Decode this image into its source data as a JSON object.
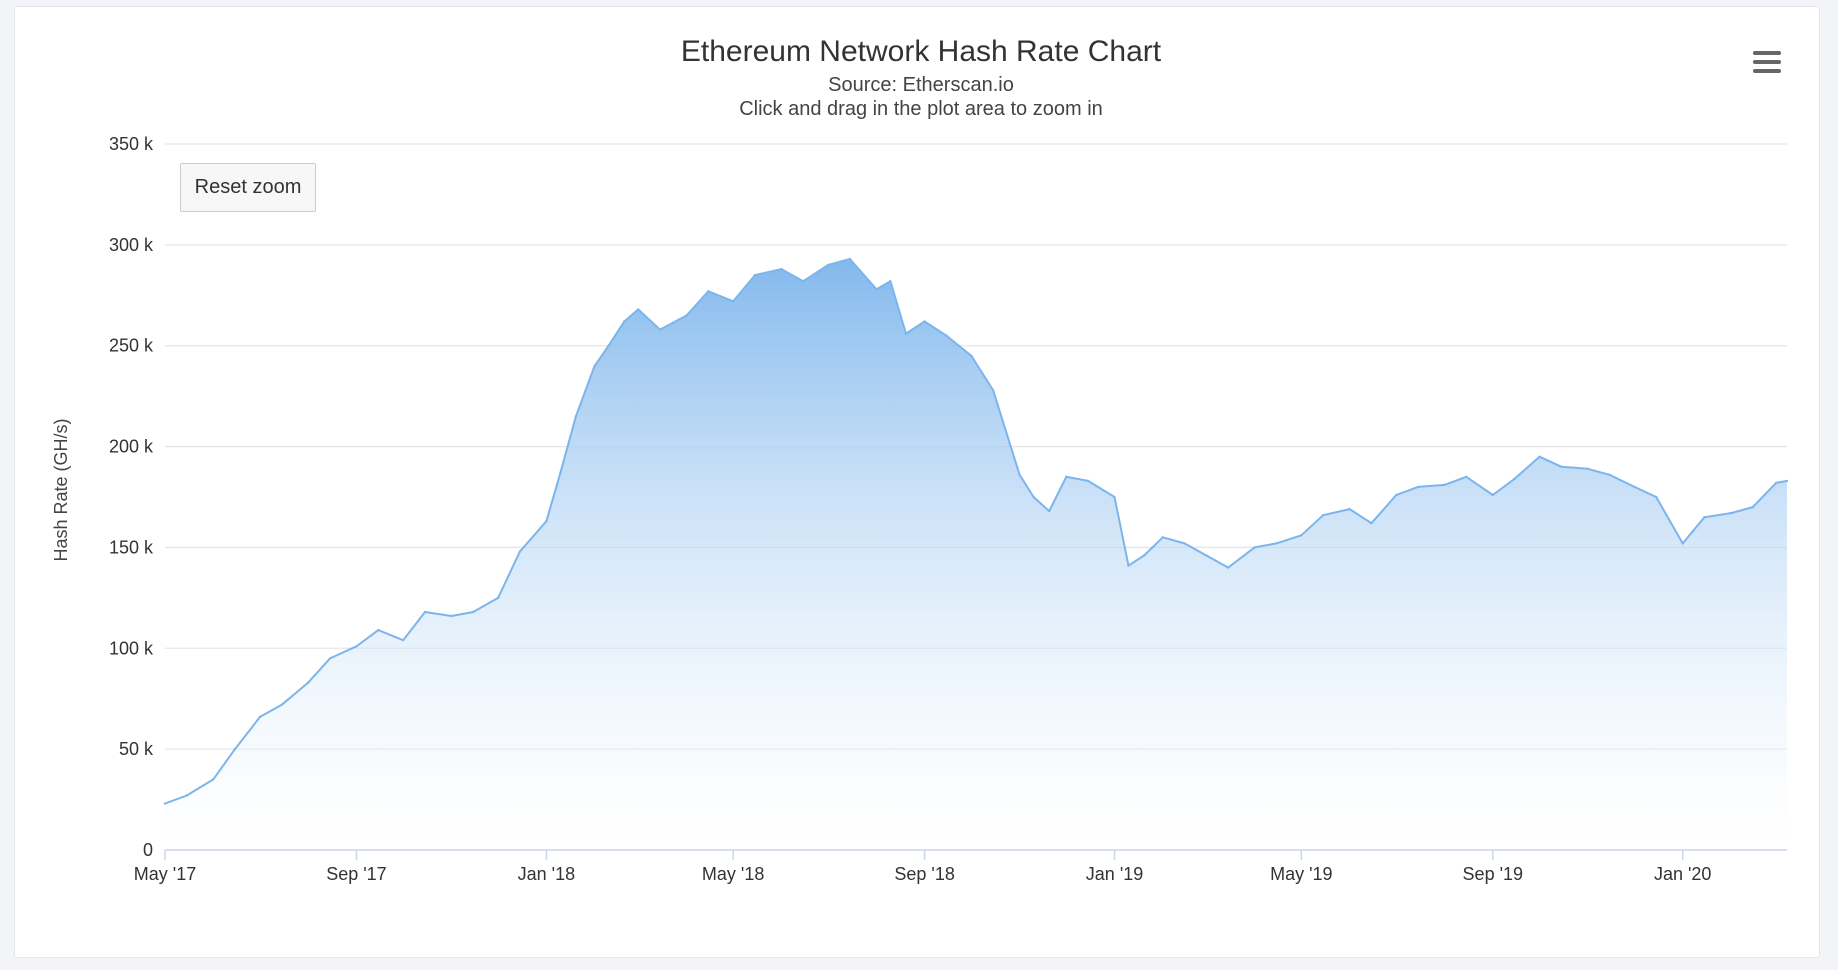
{
  "colors": {
    "series_line": "#7cb5ec",
    "area_top": "#7cb5ec",
    "area_bottom": "#ffffff"
  },
  "header": {
    "menu_icon": "hamburger-menu-icon"
  },
  "controls": {
    "reset_zoom_label": "Reset zoom"
  },
  "chart_data": {
    "type": "area",
    "title": "Ethereum Network Hash Rate Chart",
    "subtitle_source": "Source: Etherscan.io",
    "subtitle_hint": "Click and drag in the plot area to zoom in",
    "xlabel": "",
    "ylabel": "Hash Rate (GH/s)",
    "ylim": [
      0,
      350000
    ],
    "y_ticks": [
      0,
      50000,
      100000,
      150000,
      200000,
      250000,
      300000,
      350000
    ],
    "y_tick_labels": [
      "0",
      "50 k",
      "100 k",
      "150 k",
      "200 k",
      "250 k",
      "300 k",
      "350 k"
    ],
    "xlim": [
      "2017-05-01",
      "2020-03-08"
    ],
    "x_ticks": [
      "2017-05-01",
      "2017-09-01",
      "2018-01-01",
      "2018-05-01",
      "2018-09-01",
      "2019-01-01",
      "2019-05-01",
      "2019-09-01",
      "2020-01-01"
    ],
    "x_tick_labels": [
      "May '17",
      "Sep '17",
      "Jan '18",
      "May '18",
      "Sep '18",
      "Jan '19",
      "May '19",
      "Sep '19",
      "Jan '20"
    ],
    "grid": true,
    "legend": "none",
    "series": [
      {
        "x": [
          "2017-05-01",
          "2017-05-15",
          "2017-06-01",
          "2017-06-15",
          "2017-07-01",
          "2017-07-15",
          "2017-08-01",
          "2017-08-15",
          "2017-09-01",
          "2017-09-15",
          "2017-10-01",
          "2017-10-15",
          "2017-11-01",
          "2017-11-15",
          "2017-12-01",
          "2017-12-15",
          "2018-01-01",
          "2018-01-10",
          "2018-01-20",
          "2018-02-01",
          "2018-02-10",
          "2018-02-20",
          "2018-03-01",
          "2018-03-15",
          "2018-04-01",
          "2018-04-15",
          "2018-05-01",
          "2018-05-15",
          "2018-06-01",
          "2018-06-15",
          "2018-07-01",
          "2018-07-15",
          "2018-08-01",
          "2018-08-10",
          "2018-08-20",
          "2018-09-01",
          "2018-09-15",
          "2018-10-01",
          "2018-10-15",
          "2018-11-01",
          "2018-11-10",
          "2018-11-20",
          "2018-12-01",
          "2018-12-15",
          "2019-01-01",
          "2019-01-10",
          "2019-01-20",
          "2019-02-01",
          "2019-02-15",
          "2019-03-01",
          "2019-03-15",
          "2019-04-01",
          "2019-04-15",
          "2019-05-01",
          "2019-05-15",
          "2019-06-01",
          "2019-06-15",
          "2019-07-01",
          "2019-07-15",
          "2019-08-01",
          "2019-08-15",
          "2019-09-01",
          "2019-09-15",
          "2019-10-01",
          "2019-10-15",
          "2019-11-01",
          "2019-11-15",
          "2019-12-01",
          "2019-12-15",
          "2020-01-01",
          "2020-01-15",
          "2020-02-01",
          "2020-02-15",
          "2020-03-01",
          "2020-03-08"
        ],
        "values": [
          23000,
          27000,
          35000,
          50000,
          66000,
          72000,
          83000,
          95000,
          101000,
          109000,
          104000,
          118000,
          116000,
          118000,
          125000,
          148000,
          163000,
          187000,
          215000,
          240000,
          250000,
          262000,
          268000,
          258000,
          265000,
          277000,
          272000,
          285000,
          288000,
          282000,
          290000,
          293000,
          278000,
          282000,
          256000,
          262000,
          255000,
          245000,
          228000,
          186000,
          175000,
          168000,
          185000,
          183000,
          175000,
          141000,
          146000,
          155000,
          152000,
          146000,
          140000,
          150000,
          152000,
          156000,
          166000,
          169000,
          162000,
          176000,
          180000,
          181000,
          185000,
          176000,
          184000,
          195000,
          190000,
          189000,
          186000,
          180000,
          175000,
          152000,
          165000,
          167000,
          170000,
          182000,
          183000
        ]
      }
    ]
  }
}
